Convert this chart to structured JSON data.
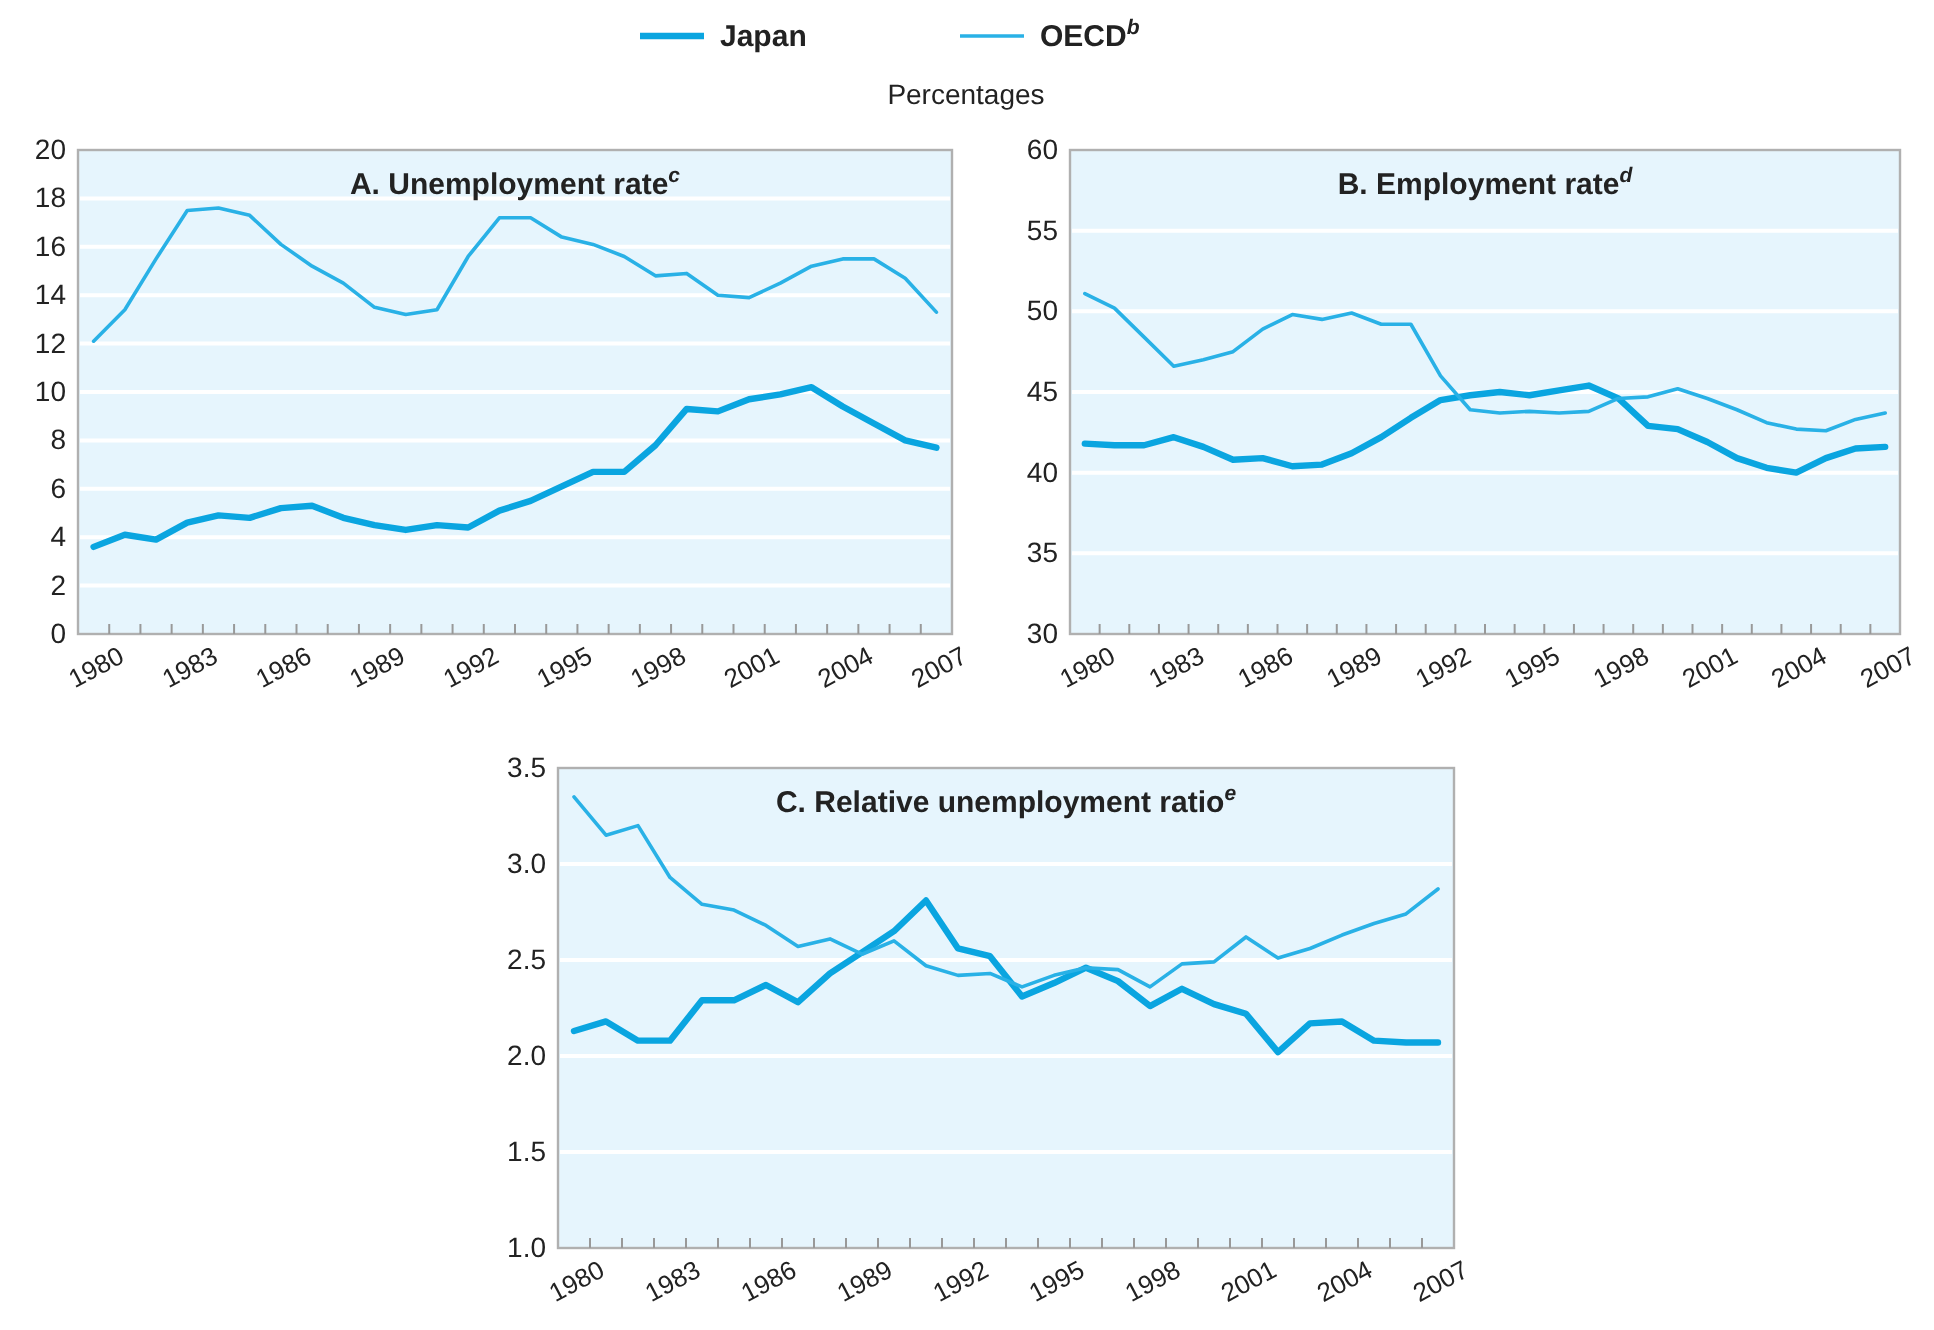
{
  "chart_data": [
    {
      "type": "line",
      "title": "A. Unemployment rate$^{c}$",
      "subtitle": "Percentages",
      "legend": "top",
      "grid": "y",
      "categories": [
        "1980",
        null,
        null,
        "1983",
        null,
        null,
        "1986",
        null,
        null,
        "1989",
        null,
        null,
        "1992",
        null,
        null,
        "1995",
        null,
        null,
        "1998",
        null,
        null,
        "2001",
        null,
        null,
        "2004",
        null,
        null,
        "2007"
      ],
      "ylim": [
        0,
        20
      ],
      "yticks": [
        0,
        2,
        4,
        6,
        8,
        10,
        12,
        14,
        16,
        18,
        20
      ],
      "series": [
        {
          "name": "Japan",
          "color": "#0aa5e0",
          "values": [
            3.6,
            4.1,
            3.9,
            4.6,
            4.9,
            4.8,
            5.2,
            5.3,
            4.8,
            4.5,
            4.3,
            4.5,
            4.4,
            5.1,
            5.5,
            6.1,
            6.7,
            6.7,
            7.8,
            9.3,
            9.2,
            9.7,
            9.9,
            10.2,
            9.4,
            8.7,
            8.0,
            7.7
          ]
        },
        {
          "name": "OECD$^{b}$",
          "color": "#29b1e6",
          "values": [
            12.1,
            13.4,
            15.5,
            17.5,
            17.6,
            17.3,
            16.1,
            15.2,
            14.5,
            13.5,
            13.2,
            13.4,
            15.6,
            17.2,
            17.2,
            16.4,
            16.1,
            15.6,
            14.8,
            14.9,
            14.0,
            13.9,
            14.5,
            15.2,
            15.5,
            15.5,
            14.7,
            13.3
          ]
        }
      ]
    },
    {
      "type": "line",
      "title": "B. Employment rate$^{d}$",
      "grid": "y",
      "categories": [
        "1980",
        null,
        null,
        "1983",
        null,
        null,
        "1986",
        null,
        null,
        "1989",
        null,
        null,
        "1992",
        null,
        null,
        "1995",
        null,
        null,
        "1998",
        null,
        null,
        "2001",
        null,
        null,
        "2004",
        null,
        null,
        "2007"
      ],
      "ylim": [
        30,
        60
      ],
      "yticks": [
        30,
        35,
        40,
        45,
        50,
        55,
        60
      ],
      "series": [
        {
          "color": "#0aa5e0",
          "values": [
            41.8,
            41.7,
            41.7,
            42.2,
            41.6,
            40.8,
            40.9,
            40.4,
            40.5,
            41.2,
            42.2,
            43.4,
            44.5,
            44.8,
            45.0,
            44.8,
            45.1,
            45.4,
            44.6,
            42.9,
            42.7,
            41.9,
            40.9,
            40.3,
            40.0,
            40.9,
            41.5,
            41.6
          ]
        },
        {
          "color": "#29b1e6",
          "values": [
            51.1,
            50.2,
            48.4,
            46.6,
            47.0,
            47.5,
            48.9,
            49.8,
            49.5,
            49.9,
            49.2,
            49.2,
            46.0,
            43.9,
            43.7,
            43.8,
            43.7,
            43.8,
            44.6,
            44.7,
            45.2,
            44.6,
            43.9,
            43.1,
            42.7,
            42.6,
            43.3,
            43.7
          ]
        }
      ]
    },
    {
      "type": "line",
      "title": "C. Relative unemployment ratio$^{e}$",
      "grid": "y",
      "categories": [
        "1980",
        null,
        null,
        "1983",
        null,
        null,
        "1986",
        null,
        null,
        "1989",
        null,
        null,
        "1992",
        null,
        null,
        "1995",
        null,
        null,
        "1998",
        null,
        null,
        "2001",
        null,
        null,
        "2004",
        null,
        null,
        "2007"
      ],
      "ylim": [
        1.0,
        3.5
      ],
      "yticks": [
        {
          "value": 1.0,
          "label": "1.0"
        },
        {
          "value": 1.5,
          "label": "1.5"
        },
        {
          "value": 2.0,
          "label": "2.0"
        },
        {
          "value": 2.5,
          "label": "2.5"
        },
        {
          "value": 3.0,
          "label": "3.0"
        },
        {
          "value": 3.5,
          "label": "3.5"
        }
      ],
      "series": [
        {
          "color": "#0aa5e0",
          "values": [
            2.13,
            2.18,
            2.08,
            2.08,
            2.29,
            2.29,
            2.37,
            2.28,
            2.43,
            2.54,
            2.65,
            2.81,
            2.56,
            2.52,
            2.31,
            2.38,
            2.46,
            2.39,
            2.26,
            2.35,
            2.27,
            2.22,
            2.02,
            2.17,
            2.18,
            2.08,
            2.07,
            2.07
          ]
        },
        {
          "color": "#29b1e6",
          "values": [
            3.35,
            3.15,
            3.2,
            2.93,
            2.79,
            2.76,
            2.68,
            2.57,
            2.61,
            2.53,
            2.6,
            2.47,
            2.42,
            2.43,
            2.36,
            2.42,
            2.46,
            2.45,
            2.36,
            2.48,
            2.49,
            2.62,
            2.51,
            2.56,
            2.63,
            2.69,
            2.74,
            2.87
          ]
        }
      ]
    }
  ]
}
